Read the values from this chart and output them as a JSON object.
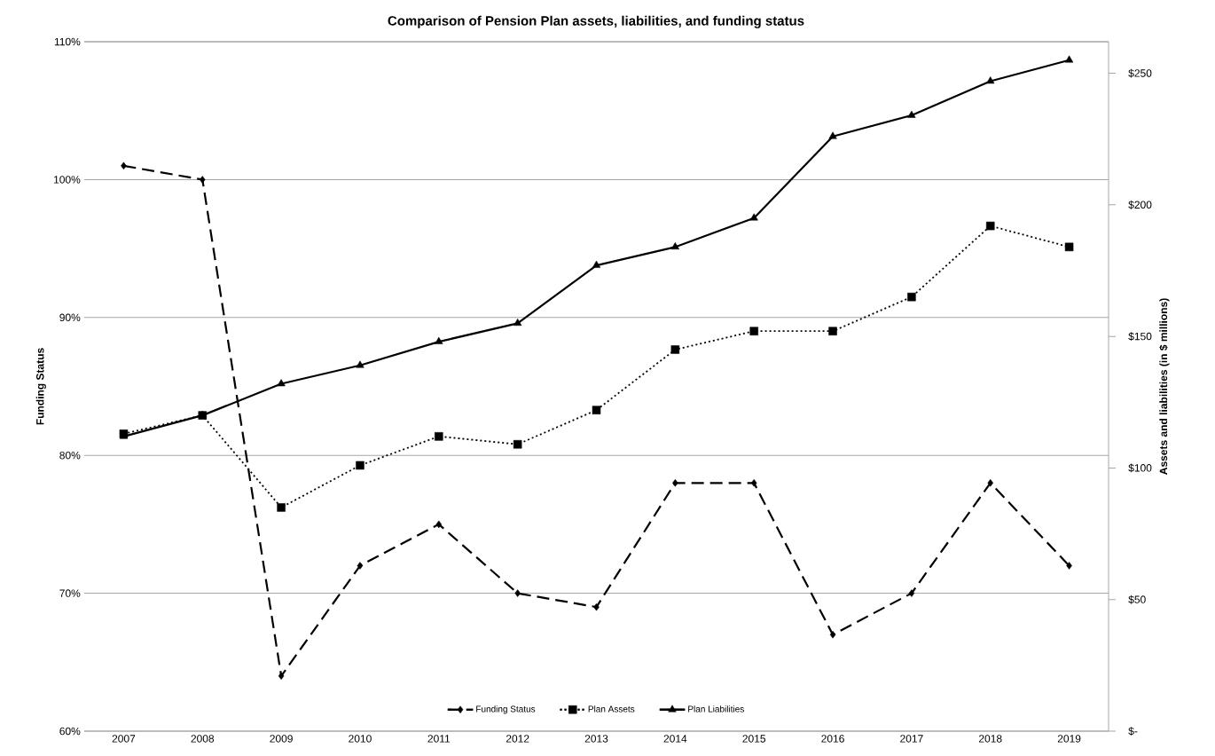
{
  "chart_data": {
    "type": "line",
    "title": "Comparison of Pension Plan assets, liabilities, and funding status",
    "ylabel": "Funding Status",
    "y2label": "Assets and liabilities  (in $ millions)",
    "categories": [
      "2007",
      "2008",
      "2009",
      "2010",
      "2011",
      "2012",
      "2013",
      "2014",
      "2015",
      "2016",
      "2017",
      "2018",
      "2019"
    ],
    "series": [
      {
        "name": "Funding Status",
        "color": "#000000",
        "marker": "diamond",
        "line_style": "dashed",
        "values": [
          101,
          100,
          64,
          72,
          75,
          70,
          69,
          78,
          78,
          67,
          70,
          78,
          72
        ]
      },
      {
        "name": "Plan Assets",
        "color": "#000000",
        "marker": "square",
        "line_style": "dotted",
        "axis": "y2",
        "values": [
          113,
          120,
          85,
          101,
          112,
          109,
          122,
          145,
          152,
          152,
          165,
          192,
          184
        ]
      },
      {
        "name": "Plan Liabilities",
        "color": "#000000",
        "marker": "triangle",
        "line_style": "solid",
        "axis": "y2",
        "values": [
          112,
          120,
          132,
          139,
          148,
          155,
          177,
          184,
          195,
          226,
          234,
          247,
          255
        ]
      }
    ],
    "ylim": [
      60,
      110
    ],
    "yticks": [
      {
        "value": 60,
        "label": "60%"
      },
      {
        "value": 70,
        "label": "70%"
      },
      {
        "value": 80,
        "label": "80%"
      },
      {
        "value": 90,
        "label": "90%"
      },
      {
        "value": 100,
        "label": "100%"
      },
      {
        "value": 110,
        "label": "110%"
      }
    ],
    "y2lim": [
      0,
      262
    ],
    "y2ticks": [
      {
        "value": 0,
        "label": "$-"
      },
      {
        "value": 50,
        "label": "$50"
      },
      {
        "value": 100,
        "label": "$100"
      },
      {
        "value": 150,
        "label": "$150"
      },
      {
        "value": 200,
        "label": "$200"
      },
      {
        "value": 250,
        "label": "$250"
      }
    ],
    "grid": "y",
    "legend": "bottom"
  }
}
